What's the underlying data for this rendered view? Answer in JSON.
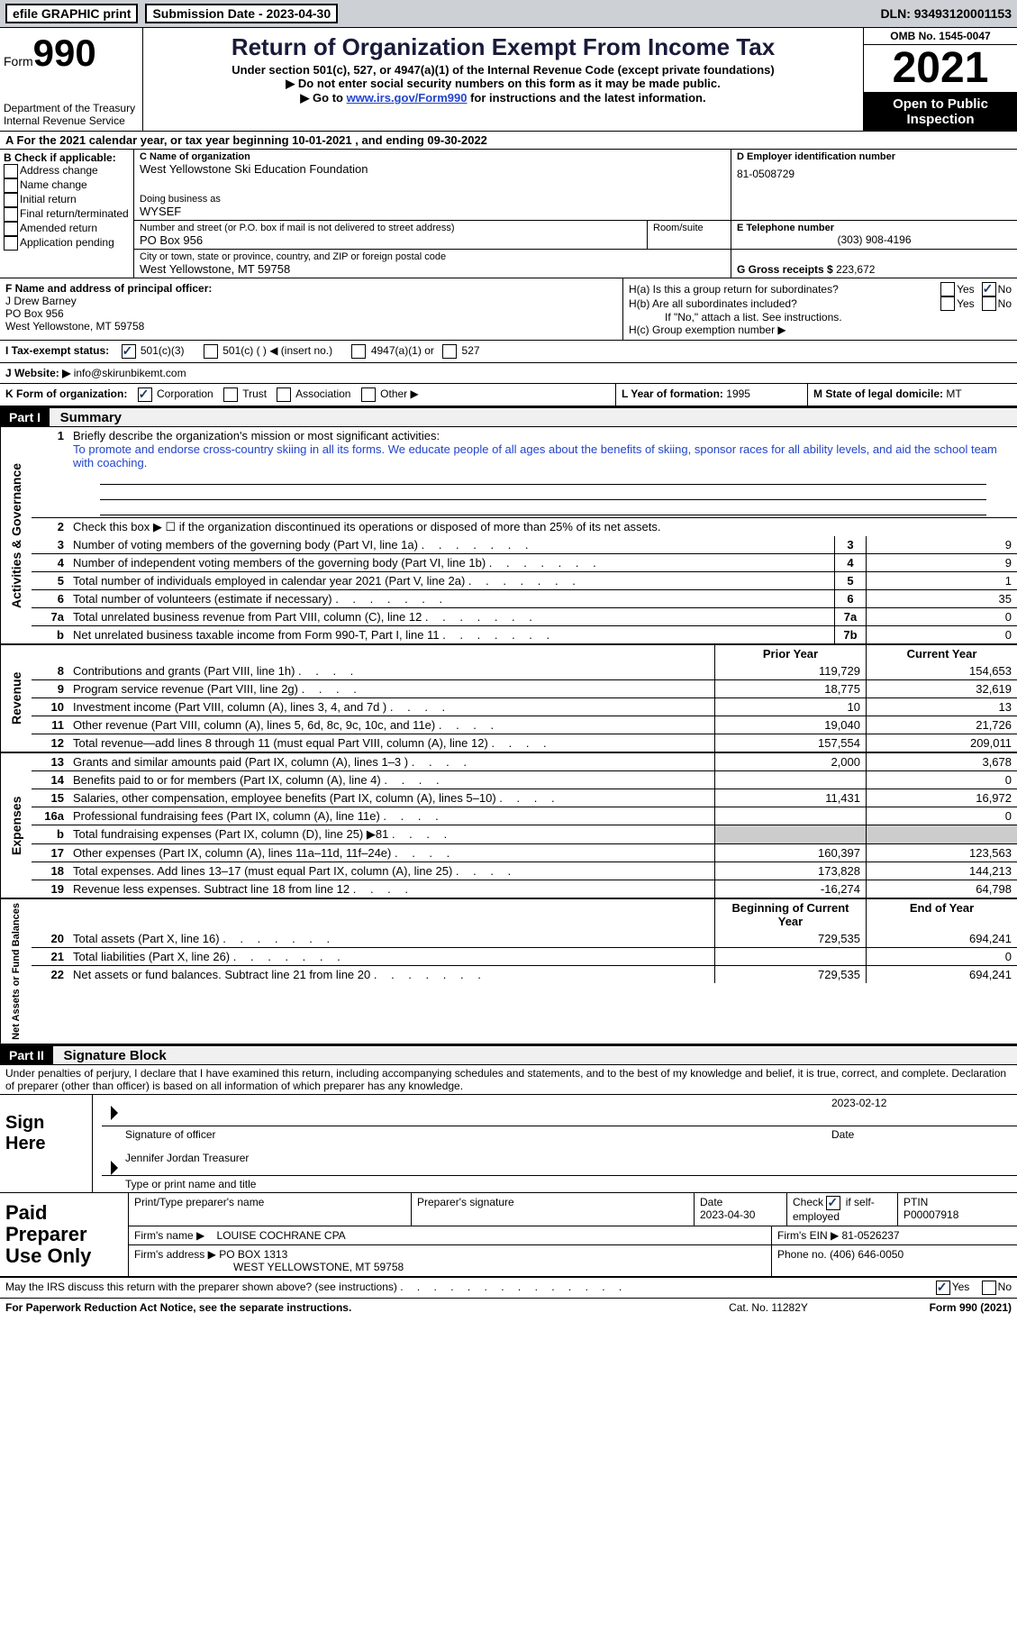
{
  "topbar": {
    "efile": "efile GRAPHIC print",
    "submission_label": "Submission Date - 2023-04-30",
    "dln": "DLN: 93493120001153"
  },
  "header": {
    "form_label": "Form",
    "form_number": "990",
    "dept": "Department of the Treasury",
    "irs": "Internal Revenue Service",
    "title": "Return of Organization Exempt From Income Tax",
    "sub1": "Under section 501(c), 527, or 4947(a)(1) of the Internal Revenue Code (except private foundations)",
    "sub2": "▶ Do not enter social security numbers on this form as it may be made public.",
    "sub3_a": "▶ Go to ",
    "sub3_link": "www.irs.gov/Form990",
    "sub3_b": " for instructions and the latest information.",
    "omb": "OMB No. 1545-0047",
    "year": "2021",
    "open": "Open to Public Inspection"
  },
  "line_a": "A For the 2021 calendar year, or tax year beginning 10-01-2021    , and ending 09-30-2022",
  "box_b": {
    "title": "B Check if applicable:",
    "opts": [
      "Address change",
      "Name change",
      "Initial return",
      "Final return/terminated",
      "Amended return",
      "Application pending"
    ]
  },
  "box_c": {
    "label_name": "C Name of organization",
    "org_name": "West Yellowstone Ski Education Foundation",
    "dba_label": "Doing business as",
    "dba": "WYSEF",
    "street_label": "Number and street (or P.O. box if mail is not delivered to street address)",
    "room_label": "Room/suite",
    "street": "PO Box 956",
    "city_label": "City or town, state or province, country, and ZIP or foreign postal code",
    "city": "West Yellowstone, MT  59758"
  },
  "box_d": {
    "label": "D Employer identification number",
    "ein": "81-0508729",
    "e_label": "E Telephone number",
    "phone": "(303) 908-4196",
    "g_label": "G Gross receipts $",
    "gross": "223,672"
  },
  "box_f": {
    "label": "F Name and address of principal officer:",
    "name": "J Drew Barney",
    "addr1": "PO Box 956",
    "addr2": "West Yellowstone, MT  59758"
  },
  "box_h": {
    "ha": "H(a)  Is this a group return for subordinates?",
    "hb": "H(b)  Are all subordinates included?",
    "hb_note": "If \"No,\" attach a list. See instructions.",
    "hc": "H(c)  Group exemption number ▶"
  },
  "row_i": {
    "label": "I   Tax-exempt status:",
    "opt1": "501(c)(3)",
    "opt2": "501(c) (  ) ◀ (insert no.)",
    "opt3": "4947(a)(1) or",
    "opt4": "527"
  },
  "row_j": {
    "label": "J   Website: ▶",
    "val": "info@skirunbikemt.com"
  },
  "row_k": {
    "label": "K Form of organization:",
    "opts": [
      "Corporation",
      "Trust",
      "Association",
      "Other ▶"
    ],
    "l_label": "L Year of formation:",
    "l_val": "1995",
    "m_label": "M State of legal domicile:",
    "m_val": "MT"
  },
  "part1": {
    "header": "Part I",
    "title": "Summary",
    "line1_label": "Briefly describe the organization's mission or most significant activities:",
    "line1_text": "To promote and endorse cross-country skiing in all its forms. We educate people of all ages about the benefits of skiing, sponsor races for all ability levels, and aid the school team with coaching.",
    "line2": "Check this box ▶ ☐ if the organization discontinued its operations or disposed of more than 25% of its net assets.",
    "sections": {
      "governance": "Activities & Governance",
      "revenue": "Revenue",
      "expenses": "Expenses",
      "netassets": "Net Assets or Fund Balances"
    },
    "headers": {
      "prior": "Prior Year",
      "current": "Current Year",
      "beg": "Beginning of Current Year",
      "end": "End of Year"
    },
    "lines": [
      {
        "n": "3",
        "t": "Number of voting members of the governing body (Part VI, line 1a)",
        "box": "3",
        "v1": "",
        "v2": "9"
      },
      {
        "n": "4",
        "t": "Number of independent voting members of the governing body (Part VI, line 1b)",
        "box": "4",
        "v1": "",
        "v2": "9"
      },
      {
        "n": "5",
        "t": "Total number of individuals employed in calendar year 2021 (Part V, line 2a)",
        "box": "5",
        "v1": "",
        "v2": "1"
      },
      {
        "n": "6",
        "t": "Total number of volunteers (estimate if necessary)",
        "box": "6",
        "v1": "",
        "v2": "35"
      },
      {
        "n": "7a",
        "t": "Total unrelated business revenue from Part VIII, column (C), line 12",
        "box": "7a",
        "v1": "",
        "v2": "0"
      },
      {
        "n": "b",
        "t": "Net unrelated business taxable income from Form 990-T, Part I, line 11",
        "box": "7b",
        "v1": "",
        "v2": "0"
      }
    ],
    "rev_lines": [
      {
        "n": "8",
        "t": "Contributions and grants (Part VIII, line 1h)",
        "v1": "119,729",
        "v2": "154,653"
      },
      {
        "n": "9",
        "t": "Program service revenue (Part VIII, line 2g)",
        "v1": "18,775",
        "v2": "32,619"
      },
      {
        "n": "10",
        "t": "Investment income (Part VIII, column (A), lines 3, 4, and 7d )",
        "v1": "10",
        "v2": "13"
      },
      {
        "n": "11",
        "t": "Other revenue (Part VIII, column (A), lines 5, 6d, 8c, 9c, 10c, and 11e)",
        "v1": "19,040",
        "v2": "21,726"
      },
      {
        "n": "12",
        "t": "Total revenue—add lines 8 through 11 (must equal Part VIII, column (A), line 12)",
        "v1": "157,554",
        "v2": "209,011"
      }
    ],
    "exp_lines": [
      {
        "n": "13",
        "t": "Grants and similar amounts paid (Part IX, column (A), lines 1–3 )",
        "v1": "2,000",
        "v2": "3,678"
      },
      {
        "n": "14",
        "t": "Benefits paid to or for members (Part IX, column (A), line 4)",
        "v1": "",
        "v2": "0"
      },
      {
        "n": "15",
        "t": "Salaries, other compensation, employee benefits (Part IX, column (A), lines 5–10)",
        "v1": "11,431",
        "v2": "16,972"
      },
      {
        "n": "16a",
        "t": "Professional fundraising fees (Part IX, column (A), line 11e)",
        "v1": "",
        "v2": "0"
      },
      {
        "n": "b",
        "t": "Total fundraising expenses (Part IX, column (D), line 25) ▶81",
        "v1": "grey",
        "v2": "grey"
      },
      {
        "n": "17",
        "t": "Other expenses (Part IX, column (A), lines 11a–11d, 11f–24e)",
        "v1": "160,397",
        "v2": "123,563"
      },
      {
        "n": "18",
        "t": "Total expenses. Add lines 13–17 (must equal Part IX, column (A), line 25)",
        "v1": "173,828",
        "v2": "144,213"
      },
      {
        "n": "19",
        "t": "Revenue less expenses. Subtract line 18 from line 12",
        "v1": "-16,274",
        "v2": "64,798"
      }
    ],
    "net_lines": [
      {
        "n": "20",
        "t": "Total assets (Part X, line 16)",
        "v1": "729,535",
        "v2": "694,241"
      },
      {
        "n": "21",
        "t": "Total liabilities (Part X, line 26)",
        "v1": "",
        "v2": "0"
      },
      {
        "n": "22",
        "t": "Net assets or fund balances. Subtract line 21 from line 20",
        "v1": "729,535",
        "v2": "694,241"
      }
    ]
  },
  "part2": {
    "header": "Part II",
    "title": "Signature Block",
    "penalties": "Under penalties of perjury, I declare that I have examined this return, including accompanying schedules and statements, and to the best of my knowledge and belief, it is true, correct, and complete. Declaration of preparer (other than officer) is based on all information of which preparer has any knowledge.",
    "sign_here": "Sign Here",
    "sig_officer": "Signature of officer",
    "sig_date": "2023-02-12",
    "sig_date_label": "Date",
    "name_title": "Jennifer Jordan  Treasurer",
    "name_label": "Type or print name and title",
    "paid_label": "Paid Preparer Use Only",
    "prep_name_label": "Print/Type preparer's name",
    "prep_sig_label": "Preparer's signature",
    "prep_date_label": "Date",
    "prep_date": "2023-04-30",
    "check_label": "Check ☑ if self-employed",
    "ptin_label": "PTIN",
    "ptin": "P00007918",
    "firm_name_label": "Firm's name    ▶",
    "firm_name": "LOUISE COCHRANE CPA",
    "firm_ein_label": "Firm's EIN ▶",
    "firm_ein": "81-0526237",
    "firm_addr_label": "Firm's address ▶",
    "firm_addr1": "PO BOX 1313",
    "firm_addr2": "WEST YELLOWSTONE, MT  59758",
    "phone_label": "Phone no.",
    "phone": "(406) 646-0050"
  },
  "footer": {
    "discuss": "May the IRS discuss this return with the preparer shown above? (see instructions)",
    "paperwork": "For Paperwork Reduction Act Notice, see the separate instructions.",
    "cat": "Cat. No. 11282Y",
    "form": "Form 990 (2021)"
  }
}
